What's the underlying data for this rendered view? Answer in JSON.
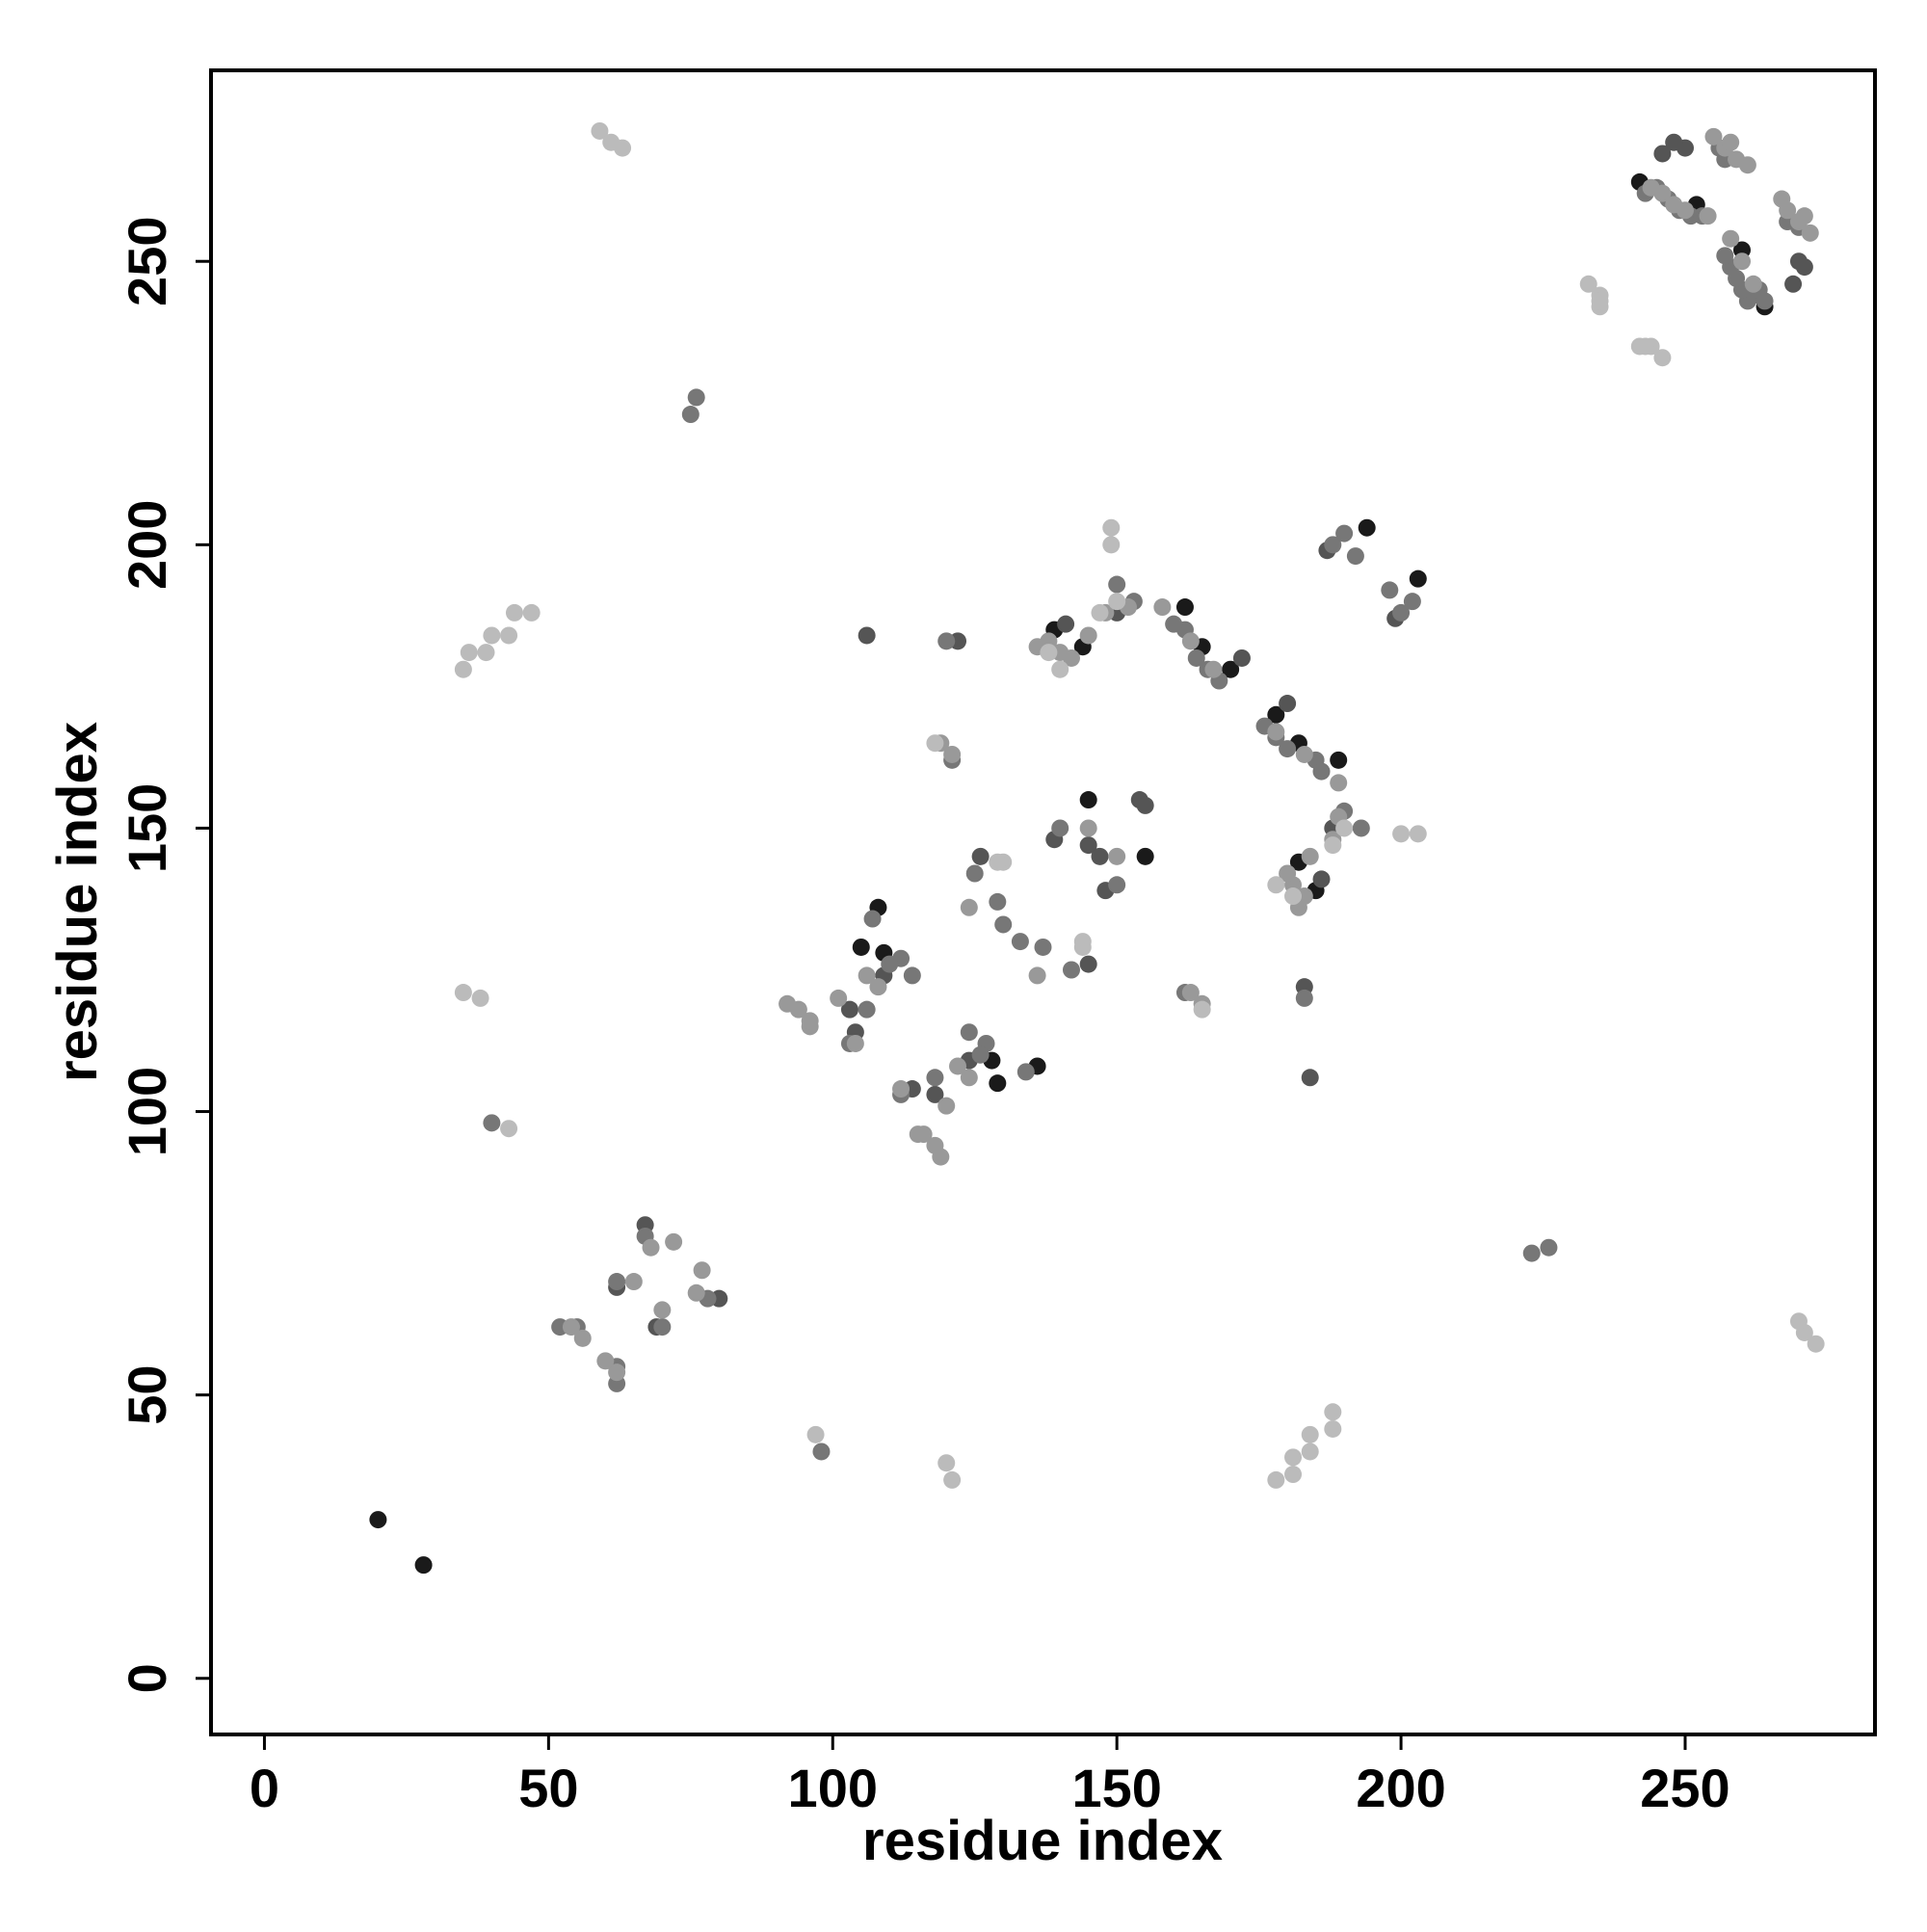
{
  "chart_data": {
    "type": "scatter",
    "x_label": "residue index",
    "y_label": "residue index",
    "xlim": [
      -9.4,
      283.4
    ],
    "ylim": [
      -9.9,
      283.7
    ],
    "xticks": [
      0,
      50,
      100,
      150,
      200,
      250
    ],
    "yticks": [
      0,
      50,
      100,
      150,
      200,
      250
    ],
    "series": [
      {
        "color": "#1a1a1a",
        "x": [
          20,
          28,
          194,
          203,
          105,
          129,
          182,
          165,
          162,
          189,
          260,
          252,
          242,
          264,
          145,
          155,
          108,
          136,
          182,
          144,
          170,
          178,
          185,
          139,
          128,
          109
        ],
        "values": [
          28,
          20,
          203,
          194,
          129,
          105,
          165,
          182,
          189,
          162,
          252,
          260,
          264,
          242,
          155,
          145,
          136,
          108,
          144,
          182,
          178,
          170,
          139,
          185,
          109,
          128
        ]
      },
      {
        "color": "#555555",
        "x": [
          246,
          269,
          250,
          270,
          248,
          271,
          183,
          122,
          184,
          106,
          199,
          187,
          172,
          180,
          188,
          150,
          114,
          104,
          103,
          118,
          145,
          147,
          154,
          155,
          141,
          186,
          126,
          145,
          139,
          148,
          67,
          80,
          62,
          69,
          124,
          109
        ],
        "values": [
          269,
          246,
          270,
          250,
          271,
          249,
          122,
          183,
          106,
          184,
          187,
          199,
          180,
          172,
          150,
          188,
          104,
          114,
          118,
          103,
          147,
          145,
          155,
          154,
          186,
          141,
          145,
          126,
          148,
          139,
          80,
          67,
          69,
          62,
          109,
          124
        ]
      },
      {
        "color": "#777777",
        "x": [
          243,
          245,
          247,
          249,
          251,
          253,
          262,
          261,
          260,
          259,
          258,
          257,
          263,
          264,
          268,
          270,
          257,
          256,
          188,
          190,
          200,
          202,
          192,
          198,
          176,
          168,
          178,
          166,
          180,
          164,
          185,
          162,
          160,
          186,
          153,
          190,
          150,
          193,
          114,
          124,
          112,
          127,
          110,
          126,
          103,
          112,
          106,
          118,
          120,
          183,
          121,
          162,
          67,
          78,
          62,
          52,
          62,
          55,
          70,
          62,
          76,
          226,
          75,
          223,
          137,
          129,
          133,
          130,
          125,
          142,
          134,
          107,
          140,
          150,
          40,
          98
        ],
        "values": [
          262,
          263,
          261,
          259,
          258,
          258,
          244,
          243,
          245,
          247,
          249,
          251,
          245,
          243,
          257,
          256,
          268,
          270,
          200,
          202,
          188,
          190,
          198,
          192,
          168,
          176,
          166,
          178,
          164,
          180,
          162,
          185,
          186,
          160,
          190,
          153,
          193,
          150,
          124,
          114,
          127,
          112,
          126,
          110,
          112,
          103,
          118,
          106,
          183,
          120,
          162,
          121,
          78,
          67,
          52,
          62,
          55,
          62,
          62,
          70,
          226,
          76,
          223,
          75,
          129,
          137,
          130,
          133,
          142,
          125,
          107,
          134,
          150,
          140,
          98,
          40
        ]
      },
      {
        "color": "#999999",
        "x": [
          244,
          246,
          248,
          250,
          254,
          258,
          260,
          262,
          255,
          272,
          257,
          270,
          259,
          268,
          261,
          267,
          271,
          258,
          138,
          183,
          140,
          181,
          142,
          180,
          136,
          182,
          145,
          184,
          148,
          188,
          152,
          189,
          158,
          189,
          163,
          183,
          167,
          178,
          106,
          124,
          108,
          122,
          104,
          112,
          101,
          120,
          94,
          118,
          96,
          115,
          119,
          92,
          116,
          96,
          54,
          62,
          56,
          60,
          65,
          70,
          72,
          77,
          76,
          68,
          165,
          119,
          163,
          121,
          124,
          136,
          150,
          145
        ],
        "values": [
          263,
          262,
          260,
          259,
          258,
          254,
          250,
          246,
          272,
          255,
          270,
          257,
          268,
          259,
          267,
          261,
          258,
          271,
          183,
          138,
          181,
          140,
          180,
          142,
          182,
          136,
          184,
          145,
          188,
          148,
          189,
          152,
          189,
          158,
          183,
          163,
          178,
          167,
          124,
          106,
          122,
          108,
          112,
          104,
          120,
          101,
          118,
          94,
          115,
          96,
          92,
          119,
          96,
          116,
          62,
          54,
          60,
          56,
          70,
          65,
          77,
          72,
          68,
          76,
          119,
          165,
          121,
          163,
          136,
          124,
          145,
          150
        ]
      },
      {
        "color": "#bbbbbb",
        "x": [
          35,
          178,
          36,
          181,
          39,
          181,
          40,
          184,
          43,
          184,
          44,
          188,
          47,
          188,
          35,
          121,
          38,
          120,
          43,
          97,
          59,
          273,
          61,
          271,
          63,
          270,
          233,
          246,
          235,
          244,
          235,
          242,
          243,
          235,
          149,
          203,
          149,
          200,
          150,
          190,
          147,
          188,
          138,
          181,
          140,
          178,
          165,
          118,
          130,
          144,
          144,
          129
        ],
        "values": [
          178,
          35,
          181,
          36,
          181,
          39,
          184,
          40,
          184,
          43,
          188,
          44,
          188,
          47,
          121,
          35,
          120,
          38,
          97,
          43,
          273,
          59,
          271,
          61,
          270,
          63,
          246,
          233,
          244,
          235,
          242,
          235,
          235,
          243,
          203,
          149,
          200,
          149,
          190,
          150,
          188,
          147,
          181,
          138,
          178,
          140,
          118,
          165,
          144,
          130,
          129,
          144
        ]
      }
    ]
  }
}
